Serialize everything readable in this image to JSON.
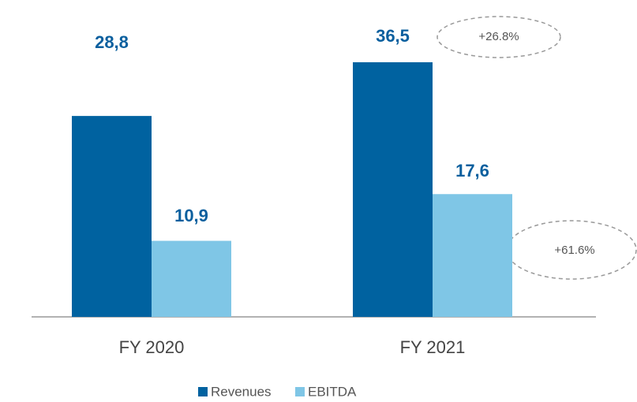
{
  "chart_data": {
    "type": "bar",
    "categories": [
      "FY 2020",
      "FY 2021"
    ],
    "series": [
      {
        "name": "Revenues",
        "color": "#0062a0",
        "values": [
          28.8,
          36.5
        ],
        "value_labels": [
          "28,8",
          "36,5"
        ]
      },
      {
        "name": "EBITDA",
        "color": "#7fc6e6",
        "values": [
          10.9,
          17.6
        ],
        "value_labels": [
          "10,9",
          "17,6"
        ]
      }
    ],
    "annotations": [
      "+26.8%",
      "+61.6%"
    ]
  }
}
